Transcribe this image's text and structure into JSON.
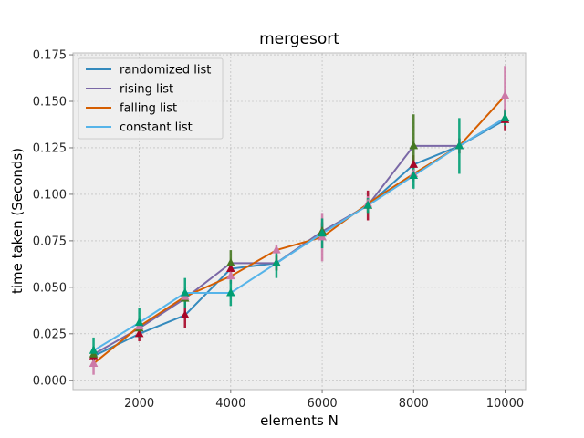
{
  "chart_data": {
    "type": "line",
    "title": "mergesort",
    "xlabel": "elements N",
    "ylabel": "time taken (Seconds)",
    "xlim": [
      550,
      10450
    ],
    "ylim": [
      -0.005,
      0.176
    ],
    "xticks": [
      2000,
      4000,
      6000,
      8000,
      10000
    ],
    "yticks": [
      "0.000",
      "0.025",
      "0.050",
      "0.075",
      "0.100",
      "0.125",
      "0.150",
      "0.175"
    ],
    "grid": true,
    "legend_position": "top-left",
    "x": [
      1000,
      2000,
      3000,
      4000,
      5000,
      6000,
      7000,
      8000,
      9000,
      10000
    ],
    "series": [
      {
        "name": "randomized list",
        "color": "#348ABD",
        "marker_color": "#A60628",
        "values": [
          0.013,
          0.025,
          0.035,
          0.06,
          0.063,
          0.08,
          0.094,
          0.116,
          0.126,
          0.14
        ],
        "errors": [
          0.003,
          0.004,
          0.007,
          0.004,
          0.004,
          0.005,
          0.008,
          0.005,
          0.004,
          0.006
        ]
      },
      {
        "name": "rising list",
        "color": "#7A68A6",
        "marker_color": "#467821",
        "values": [
          0.014,
          0.028,
          0.044,
          0.063,
          0.063,
          0.08,
          0.094,
          0.126,
          0.126,
          0.141
        ],
        "errors": [
          0.004,
          0.005,
          0.003,
          0.007,
          0.004,
          0.004,
          0.004,
          0.017,
          0.004,
          0.003
        ]
      },
      {
        "name": "falling list",
        "color": "#D55E00",
        "marker_color": "#CC79A7",
        "values": [
          0.009,
          0.029,
          0.045,
          0.056,
          0.07,
          0.077,
          0.095,
          0.111,
          0.126,
          0.153
        ],
        "errors": [
          0.006,
          0.004,
          0.003,
          0.004,
          0.003,
          0.013,
          0.004,
          0.004,
          0.004,
          0.016
        ]
      },
      {
        "name": "constant list",
        "color": "#56B4E9",
        "marker_color": "#009E73",
        "values": [
          0.016,
          0.031,
          0.047,
          0.047,
          0.063,
          0.079,
          0.094,
          0.11,
          0.126,
          0.141
        ],
        "errors": [
          0.007,
          0.008,
          0.008,
          0.007,
          0.008,
          0.008,
          0.004,
          0.007,
          0.015,
          0.004
        ]
      }
    ]
  }
}
